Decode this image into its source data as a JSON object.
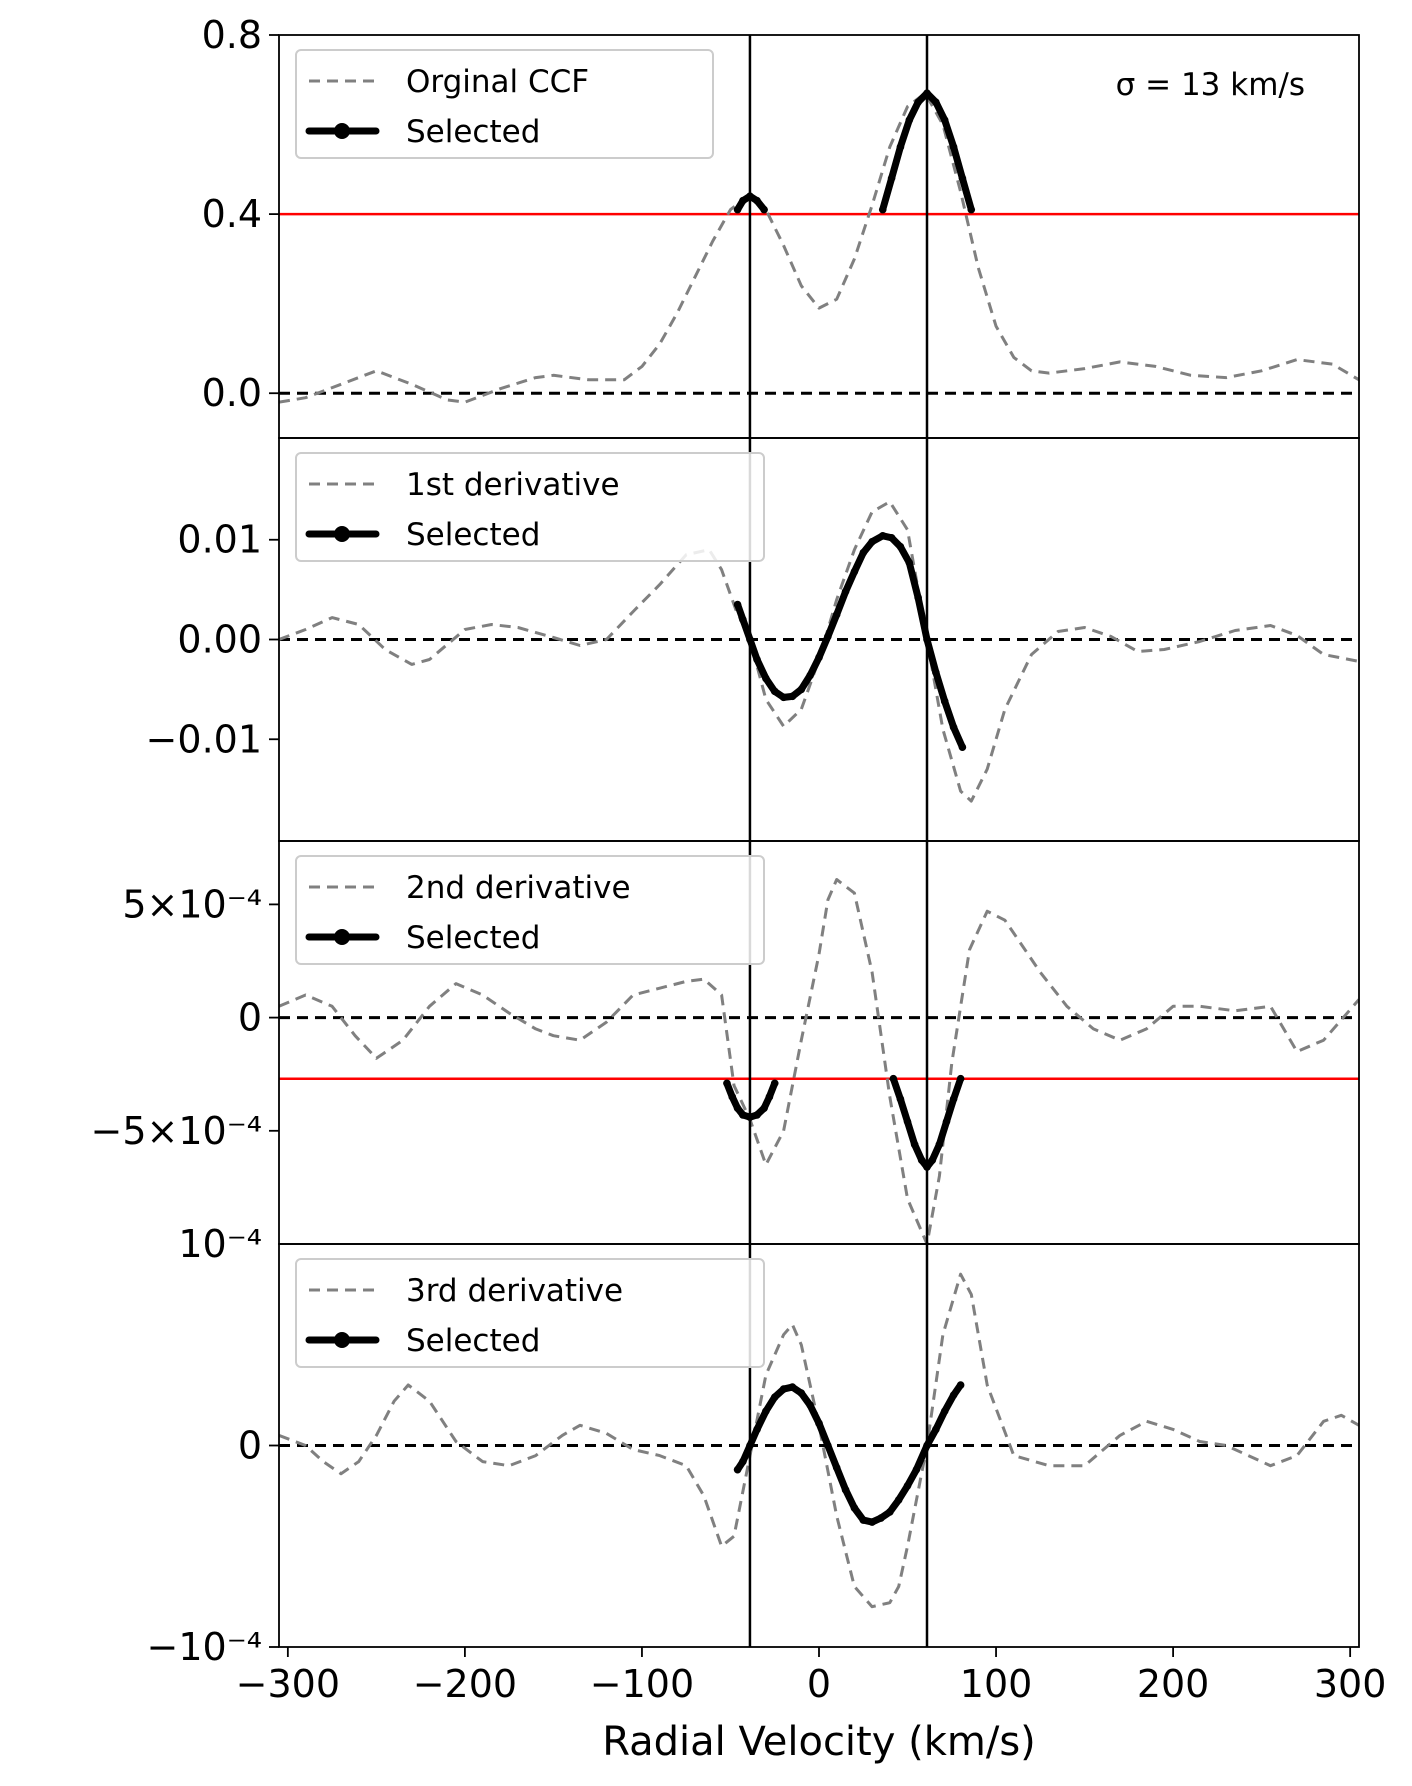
{
  "chart_data": {
    "type": "line",
    "xlabel": "Radial Velocity (km/s)",
    "xlim": [
      -305,
      305
    ],
    "xticks": [
      -300,
      -200,
      -100,
      0,
      100,
      200,
      300
    ],
    "xtick_labels": [
      "−300",
      "−200",
      "−100",
      "0",
      "100",
      "200",
      "300"
    ],
    "vertical_lines": [
      -39,
      61
    ],
    "annotation": "σ = 13 km/s",
    "panels": [
      {
        "ylim": [
          -0.1,
          0.8
        ],
        "yticks": [
          0.0,
          0.4,
          0.8
        ],
        "ytick_labels": [
          "0.0",
          "0.4",
          "0.8"
        ],
        "zero_line": 0,
        "threshold": 0.4,
        "legend": [
          "Orginal CCF",
          "Selected"
        ],
        "series": [
          {
            "name": "Orginal CCF",
            "style": "dashed",
            "color": "#808080",
            "x": [
              -305,
              -290,
              -270,
              -250,
              -230,
              -210,
              -200,
              -180,
              -160,
              -150,
              -130,
              -110,
              -100,
              -90,
              -80,
              -70,
              -60,
              -50,
              -40,
              -30,
              -20,
              -10,
              0,
              10,
              20,
              30,
              40,
              50,
              60,
              70,
              80,
              90,
              100,
              110,
              120,
              130,
              150,
              170,
              190,
              210,
              230,
              250,
              270,
              290,
              305
            ],
            "y": [
              -0.02,
              -0.01,
              0.02,
              0.05,
              0.02,
              -0.015,
              -0.02,
              0.01,
              0.035,
              0.04,
              0.03,
              0.03,
              0.06,
              0.11,
              0.18,
              0.26,
              0.34,
              0.41,
              0.44,
              0.41,
              0.33,
              0.24,
              0.19,
              0.21,
              0.3,
              0.42,
              0.55,
              0.64,
              0.67,
              0.6,
              0.45,
              0.28,
              0.15,
              0.08,
              0.05,
              0.045,
              0.055,
              0.07,
              0.06,
              0.04,
              0.035,
              0.05,
              0.075,
              0.065,
              0.03
            ]
          },
          {
            "name": "Selected",
            "style": "solid-marker",
            "color": "#000000",
            "x": [
              -46,
              -43,
              -39,
              -35,
              -31
            ],
            "y": [
              0.41,
              0.43,
              0.44,
              0.43,
              0.41
            ]
          },
          {
            "name": "Selected",
            "style": "solid-marker",
            "color": "#000000",
            "x": [
              36,
              41,
              46,
              51,
              56,
              61,
              66,
              71,
              76,
              81,
              86
            ],
            "y": [
              0.41,
              0.48,
              0.55,
              0.61,
              0.65,
              0.67,
              0.65,
              0.61,
              0.55,
              0.48,
              0.41
            ]
          }
        ]
      },
      {
        "ylim": [
          -0.0202,
          0.0202
        ],
        "yticks": [
          -0.01,
          0.0,
          0.01
        ],
        "ytick_labels": [
          "−0.01",
          "0.00",
          "0.01"
        ],
        "zero_line": 0,
        "legend": [
          "1st derivative",
          "Selected"
        ],
        "series": [
          {
            "name": "1st derivative",
            "style": "dashed",
            "color": "#808080",
            "x": [
              -305,
              -290,
              -275,
              -260,
              -245,
              -230,
              -220,
              -200,
              -185,
              -170,
              -150,
              -135,
              -120,
              -105,
              -90,
              -75,
              -62,
              -55,
              -47,
              -39,
              -30,
              -20,
              -10,
              0,
              10,
              20,
              30,
              40,
              50,
              61,
              70,
              80,
              86,
              95,
              105,
              120,
              135,
              150,
              165,
              180,
              195,
              215,
              235,
              255,
              270,
              285,
              305
            ],
            "y": [
              0.0,
              0.001,
              0.0022,
              0.0015,
              -0.001,
              -0.0025,
              -0.002,
              0.001,
              0.0015,
              0.0012,
              0.0002,
              -0.0006,
              0.0,
              0.0028,
              0.0055,
              0.0085,
              0.009,
              0.007,
              0.003,
              0.0,
              -0.006,
              -0.0087,
              -0.007,
              -0.002,
              0.004,
              0.009,
              0.0128,
              0.0138,
              0.011,
              0.0,
              -0.009,
              -0.0152,
              -0.0162,
              -0.013,
              -0.007,
              -0.0015,
              0.0008,
              0.0012,
              0.0003,
              -0.0012,
              -0.001,
              -0.0002,
              0.0009,
              0.0014,
              0.0004,
              -0.0015,
              -0.0022
            ]
          },
          {
            "name": "Selected",
            "style": "solid-marker",
            "color": "#000000",
            "x": [
              -46,
              -43,
              -39,
              -35,
              -30,
              -25,
              -20,
              -15,
              -10,
              -5,
              0,
              5,
              10,
              15,
              20,
              25,
              30,
              36,
              41,
              46,
              51,
              56,
              61,
              66,
              71,
              76,
              81
            ],
            "y": [
              0.0035,
              0.002,
              0.0,
              -0.002,
              -0.0039,
              -0.0052,
              -0.0058,
              -0.0057,
              -0.005,
              -0.0036,
              -0.0018,
              0.0003,
              0.0025,
              0.0048,
              0.0068,
              0.0087,
              0.0098,
              0.0104,
              0.0102,
              0.0093,
              0.0077,
              0.0042,
              0.0,
              -0.0033,
              -0.0062,
              -0.0088,
              -0.0108
            ]
          }
        ]
      },
      {
        "ylim": [
          -0.001,
          0.00078
        ],
        "yticks": [
          -0.0005,
          0.0,
          0.0005
        ],
        "ytick_labels": [
          "−5×10⁻⁴",
          "0",
          "5×10⁻⁴"
        ],
        "top_tick_label": "10⁻⁴",
        "zero_line": 0,
        "threshold": -0.00027,
        "legend": [
          "2nd derivative",
          "Selected"
        ],
        "series": [
          {
            "name": "2nd derivative",
            "style": "dashed",
            "color": "#808080",
            "x": [
              -305,
              -290,
              -275,
              -262,
              -250,
              -235,
              -220,
              -205,
              -190,
              -175,
              -160,
              -150,
              -135,
              -120,
              -105,
              -90,
              -75,
              -65,
              -55,
              -48,
              -39,
              -30,
              -20,
              -10,
              0,
              5,
              10,
              20,
              30,
              40,
              50,
              61,
              68,
              75,
              85,
              95,
              105,
              112,
              125,
              140,
              155,
              170,
              185,
              200,
              215,
              235,
              255,
              270,
              285,
              305
            ],
            "y": [
              5e-05,
              0.0001,
              5e-05,
              -8e-05,
              -0.00018,
              -0.0001,
              5e-05,
              0.00015,
              0.0001,
              2e-05,
              -5e-05,
              -8e-05,
              -0.0001,
              -2e-05,
              0.0001,
              0.00013,
              0.00016,
              0.00017,
              0.0001,
              -0.0003,
              -0.00045,
              -0.00065,
              -0.0005,
              -0.0001,
              0.00028,
              0.00052,
              0.00061,
              0.00055,
              0.0002,
              -0.00035,
              -0.0008,
              -0.001,
              -0.0007,
              -0.0002,
              0.0003,
              0.00047,
              0.00043,
              0.00035,
              0.0002,
              5e-05,
              -5e-05,
              -0.0001,
              -5e-05,
              5e-05,
              5e-05,
              3e-05,
              5e-05,
              -0.00015,
              -0.0001,
              8e-05
            ]
          },
          {
            "name": "Selected",
            "style": "solid-marker",
            "color": "#000000",
            "x": [
              -52,
              -49,
              -46,
              -43,
              -39,
              -35,
              -31,
              -28,
              -25
            ],
            "y": [
              -0.00029,
              -0.00035,
              -0.0004,
              -0.00043,
              -0.00044,
              -0.00043,
              -0.0004,
              -0.00035,
              -0.00029
            ]
          },
          {
            "name": "Selected",
            "style": "solid-marker",
            "color": "#000000",
            "x": [
              42,
              46,
              50,
              54,
              58,
              61,
              64,
              68,
              72,
              76,
              80
            ],
            "y": [
              -0.00027,
              -0.00036,
              -0.00046,
              -0.00056,
              -0.00063,
              -0.00066,
              -0.00063,
              -0.00056,
              -0.00046,
              -0.00036,
              -0.00027
            ]
          }
        ]
      },
      {
        "ylim": [
          -0.0001,
          0.0001
        ],
        "yticks": [
          -0.0001,
          0.0
        ],
        "ytick_labels": [
          "−10⁻⁴",
          "0"
        ],
        "zero_line": 0,
        "legend": [
          "3rd derivative",
          "Selected"
        ],
        "series": [
          {
            "name": "3rd derivative",
            "style": "dashed",
            "color": "#808080",
            "x": [
              -305,
              -290,
              -280,
              -270,
              -260,
              -250,
              -240,
              -232,
              -220,
              -205,
              -190,
              -175,
              -160,
              -145,
              -135,
              -120,
              -105,
              -90,
              -75,
              -65,
              -55,
              -48,
              -39,
              -30,
              -20,
              -15,
              -10,
              0,
              10,
              20,
              30,
              40,
              45,
              50,
              61,
              70,
              80,
              86,
              95,
              110,
              130,
              150,
              170,
              185,
              200,
              215,
              230,
              255,
              270,
              285,
              295,
              305
            ],
            "y": [
              5e-06,
              0.0,
              -8e-06,
              -1.4e-05,
              -8e-06,
              5e-06,
              2.2e-05,
              3e-05,
              2.2e-05,
              2e-06,
              -8e-06,
              -1e-05,
              -5e-06,
              5e-06,
              1e-05,
              6e-06,
              -2e-06,
              -5e-06,
              -1e-05,
              -2.5e-05,
              -5e-05,
              -4.5e-05,
              -5e-06,
              3.5e-05,
              5.5e-05,
              6e-05,
              5e-05,
              1e-05,
              -3.5e-05,
              -7e-05,
              -8e-05,
              -7.8e-05,
              -7e-05,
              -5e-05,
              0.0,
              5.5e-05,
              8.5e-05,
              7.5e-05,
              3e-05,
              -5e-06,
              -1e-05,
              -1e-05,
              5e-06,
              1.2e-05,
              8e-06,
              2e-06,
              0.0,
              -1e-05,
              -5e-06,
              1.2e-05,
              1.5e-05,
              1e-05
            ]
          },
          {
            "name": "Selected",
            "style": "solid-marker",
            "color": "#000000",
            "x": [
              -46,
              -43,
              -39,
              -35,
              -30,
              -25,
              -20,
              -15,
              -10,
              -5,
              0,
              5,
              10,
              15,
              20,
              25,
              30,
              35,
              40,
              45,
              50,
              55,
              61,
              66,
              71,
              76,
              80
            ],
            "y": [
              -1.2e-05,
              -8e-06,
              0.0,
              8e-06,
              1.7e-05,
              2.4e-05,
              2.8e-05,
              2.9e-05,
              2.6e-05,
              2e-05,
              1.1e-05,
              0.0,
              -1.1e-05,
              -2.2e-05,
              -3.1e-05,
              -3.7e-05,
              -3.8e-05,
              -3.6e-05,
              -3.3e-05,
              -2.7e-05,
              -2e-05,
              -1.2e-05,
              0.0,
              8e-06,
              1.7e-05,
              2.5e-05,
              3e-05
            ]
          }
        ]
      }
    ]
  }
}
